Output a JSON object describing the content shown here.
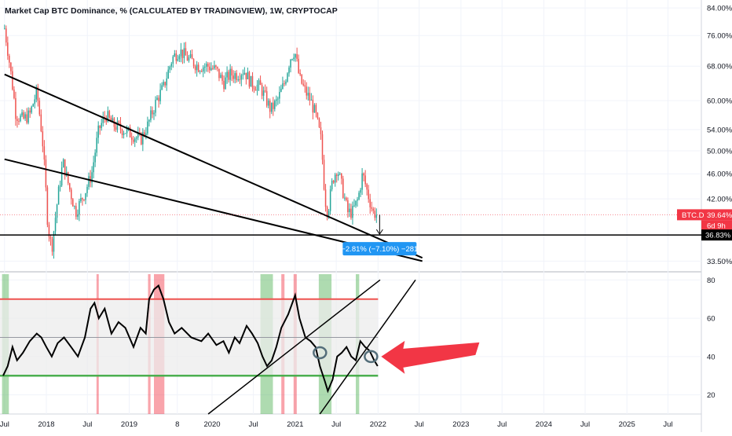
{
  "chart_data": [
    {
      "type": "candlestick",
      "title": "Market Cap BTC Dominance, % (CALCULATED BY TRADINGVIEW), 1W, CRYPTOCAP",
      "y_scale": "log",
      "ylim": [
        32.5,
        85
      ],
      "y_ticks": [
        {
          "value": 84,
          "label": "84.00%"
        },
        {
          "value": 76,
          "label": "76.00%"
        },
        {
          "value": 68,
          "label": "68.00%"
        },
        {
          "value": 60,
          "label": "60.00%"
        },
        {
          "value": 54,
          "label": "54.00%"
        },
        {
          "value": 50,
          "label": "50.00%"
        },
        {
          "value": 46,
          "label": "46.00%"
        },
        {
          "value": 42,
          "label": "42.00%"
        },
        {
          "value": 33.5,
          "label": "33.50%"
        }
      ],
      "series": [
        {
          "close_points": [
            [
              "2017-07-01",
              78
            ],
            [
              "2017-08-20",
              57
            ],
            [
              "2017-09-20",
              56
            ],
            [
              "2017-10-20",
              57
            ],
            [
              "2017-11-20",
              62
            ],
            [
              "2017-12-15",
              52
            ],
            [
              "2018-01-08",
              38
            ],
            [
              "2018-01-25",
              35
            ],
            [
              "2018-02-20",
              42
            ],
            [
              "2018-03-15",
              48
            ],
            [
              "2018-04-10",
              44
            ],
            [
              "2018-05-10",
              40
            ],
            [
              "2018-06-20",
              43
            ],
            [
              "2018-07-20",
              46
            ],
            [
              "2018-08-20",
              54
            ],
            [
              "2018-09-20",
              57
            ],
            [
              "2018-10-20",
              55
            ],
            [
              "2018-12-05",
              54
            ],
            [
              "2019-01-15",
              53
            ],
            [
              "2019-02-20",
              52
            ],
            [
              "2019-03-25",
              55
            ],
            [
              "2019-05-01",
              60
            ],
            [
              "2019-06-01",
              63
            ],
            [
              "2019-07-10",
              70
            ],
            [
              "2019-08-10",
              72
            ],
            [
              "2019-09-15",
              70
            ],
            [
              "2019-11-01",
              68
            ],
            [
              "2019-12-15",
              68
            ],
            [
              "2020-01-20",
              67
            ],
            [
              "2020-02-20",
              64
            ],
            [
              "2020-03-20",
              66
            ],
            [
              "2020-04-20",
              66
            ],
            [
              "2020-05-20",
              67
            ],
            [
              "2020-06-20",
              64
            ],
            [
              "2020-08-01",
              63
            ],
            [
              "2020-09-15",
              58
            ],
            [
              "2020-10-15",
              60
            ],
            [
              "2020-11-15",
              64
            ],
            [
              "2020-12-10",
              70
            ],
            [
              "2020-12-30",
              72
            ],
            [
              "2021-01-20",
              65
            ],
            [
              "2021-02-15",
              62
            ],
            [
              "2021-03-10",
              60
            ],
            [
              "2021-04-01",
              57
            ],
            [
              "2021-04-25",
              52
            ],
            [
              "2021-05-12",
              42
            ],
            [
              "2021-05-25",
              40
            ],
            [
              "2021-06-15",
              45
            ],
            [
              "2021-07-05",
              47
            ],
            [
              "2021-07-25",
              44
            ],
            [
              "2021-08-20",
              40
            ],
            [
              "2021-09-10",
              40
            ],
            [
              "2021-10-05",
              42
            ],
            [
              "2021-10-25",
              46
            ],
            [
              "2021-11-15",
              43
            ],
            [
              "2021-12-10",
              40
            ],
            [
              "2021-12-30",
              39.64
            ]
          ]
        }
      ],
      "price_badge": {
        "symbol": "BTC.D",
        "value": 39.64,
        "value_label": "39.64%",
        "countdown": "6d 9h"
      },
      "horizontal_level": {
        "value": 36.83,
        "label": "36.83%"
      },
      "measure_label": "−2.81% (−7.10%) −281",
      "trendlines": [
        {
          "points": [
            [
              "2017-07-01",
              66
            ],
            [
              "2022-07-15",
              33.9
            ]
          ]
        },
        {
          "points": [
            [
              "2017-07-01",
              48.5
            ],
            [
              "2022-07-15",
              33.5
            ]
          ]
        }
      ],
      "colors": {
        "up": "#26a69a",
        "down": "#ef5350",
        "badge": "#f23645",
        "measure": "#2196f3"
      }
    },
    {
      "type": "line",
      "ylim": [
        10,
        83
      ],
      "y_ticks": [
        80,
        60,
        40,
        20
      ],
      "bands": {
        "upper": 70,
        "middle": 50,
        "lower": 30
      },
      "series": [
        {
          "points": [
            [
              "2017-06-25",
              30
            ],
            [
              "2017-07-15",
              35
            ],
            [
              "2017-08-05",
              45
            ],
            [
              "2017-08-25",
              38
            ],
            [
              "2017-09-20",
              42
            ],
            [
              "2017-10-20",
              48
            ],
            [
              "2017-11-20",
              52
            ],
            [
              "2017-12-10",
              50
            ],
            [
              "2018-01-01",
              45
            ],
            [
              "2018-01-25",
              40
            ],
            [
              "2018-02-20",
              47
            ],
            [
              "2018-03-20",
              50
            ],
            [
              "2018-04-20",
              45
            ],
            [
              "2018-05-20",
              40
            ],
            [
              "2018-06-20",
              50
            ],
            [
              "2018-07-15",
              65
            ],
            [
              "2018-08-01",
              68
            ],
            [
              "2018-08-20",
              60
            ],
            [
              "2018-09-15",
              65
            ],
            [
              "2018-10-15",
              52
            ],
            [
              "2018-11-15",
              58
            ],
            [
              "2018-12-15",
              55
            ],
            [
              "2019-01-20",
              45
            ],
            [
              "2019-02-20",
              55
            ],
            [
              "2019-03-15",
              52
            ],
            [
              "2019-03-30",
              70
            ],
            [
              "2019-04-20",
              75
            ],
            [
              "2019-05-10",
              77
            ],
            [
              "2019-06-01",
              70
            ],
            [
              "2019-06-25",
              58
            ],
            [
              "2019-07-20",
              52
            ],
            [
              "2019-08-20",
              55
            ],
            [
              "2019-10-01",
              50
            ],
            [
              "2019-11-15",
              48
            ],
            [
              "2019-12-15",
              52
            ],
            [
              "2020-01-20",
              46
            ],
            [
              "2020-02-20",
              48
            ],
            [
              "2020-03-15",
              42
            ],
            [
              "2020-04-10",
              50
            ],
            [
              "2020-05-01",
              47
            ],
            [
              "2020-06-01",
              56
            ],
            [
              "2020-06-25",
              52
            ],
            [
              "2020-07-20",
              47
            ],
            [
              "2020-08-10",
              40
            ],
            [
              "2020-08-30",
              35
            ],
            [
              "2020-09-20",
              38
            ],
            [
              "2020-10-10",
              45
            ],
            [
              "2020-11-01",
              55
            ],
            [
              "2020-12-01",
              62
            ],
            [
              "2021-01-01",
              72
            ],
            [
              "2021-01-20",
              60
            ],
            [
              "2021-02-15",
              50
            ],
            [
              "2021-03-10",
              48
            ],
            [
              "2021-04-01",
              45
            ],
            [
              "2021-04-20",
              35
            ],
            [
              "2021-05-12",
              27
            ],
            [
              "2021-05-25",
              22
            ],
            [
              "2021-06-15",
              28
            ],
            [
              "2021-07-05",
              40
            ],
            [
              "2021-07-25",
              42
            ],
            [
              "2021-08-15",
              45
            ],
            [
              "2021-09-05",
              40
            ],
            [
              "2021-09-25",
              38
            ],
            [
              "2021-10-15",
              48
            ],
            [
              "2021-11-05",
              45
            ],
            [
              "2021-11-25",
              43
            ],
            [
              "2021-12-15",
              38
            ],
            [
              "2021-12-30",
              35
            ]
          ]
        }
      ],
      "trendlines": [
        {
          "points": [
            [
              "2019-12-15",
              10
            ],
            [
              "2022-01-10",
              80
            ]
          ]
        },
        {
          "points": [
            [
              "2021-04-20",
              10
            ],
            [
              "2022-06-15",
              80
            ]
          ]
        }
      ],
      "circled_points": [
        [
          "2021-04-20",
          42
        ],
        [
          "2021-12-01",
          40
        ]
      ],
      "shaded_zones": [
        {
          "from": "2017-06-20",
          "to": "2017-07-20",
          "color": "green"
        },
        {
          "from": "2018-08-10",
          "to": "2018-08-20",
          "color": "red"
        },
        {
          "from": "2019-03-25",
          "to": "2019-04-05",
          "color": "red"
        },
        {
          "from": "2019-04-20",
          "to": "2019-06-05",
          "color": "red"
        },
        {
          "from": "2020-08-01",
          "to": "2020-09-25",
          "color": "green"
        },
        {
          "from": "2020-11-01",
          "to": "2020-11-15",
          "color": "red"
        },
        {
          "from": "2020-12-25",
          "to": "2021-01-08",
          "color": "red"
        },
        {
          "from": "2021-04-15",
          "to": "2021-06-10",
          "color": "green"
        },
        {
          "from": "2021-09-25",
          "to": "2021-10-10",
          "color": "green"
        }
      ],
      "colors": {
        "line": "#000000",
        "upper": "#ef5350",
        "lower": "#4caf50",
        "band_fill": "#ececec",
        "arrow": "#f23645"
      }
    }
  ],
  "x_axis": {
    "ticks": [
      {
        "date": "2017-07-01",
        "label": "Jul"
      },
      {
        "date": "2018-01-01",
        "label": "2018"
      },
      {
        "date": "2018-07-01",
        "label": "Jul"
      },
      {
        "date": "2019-01-01",
        "label": "2019"
      },
      {
        "date": "2019-08-01",
        "label": "8"
      },
      {
        "date": "2020-01-01",
        "label": "2020"
      },
      {
        "date": "2020-07-01",
        "label": "Jul"
      },
      {
        "date": "2021-01-01",
        "label": "2021"
      },
      {
        "date": "2021-07-01",
        "label": "Jul"
      },
      {
        "date": "2022-01-01",
        "label": "2022"
      },
      {
        "date": "2022-07-01",
        "label": "Jul"
      },
      {
        "date": "2023-01-01",
        "label": "2023"
      },
      {
        "date": "2023-07-01",
        "label": "Jul"
      },
      {
        "date": "2024-01-01",
        "label": "2024"
      },
      {
        "date": "2024-07-01",
        "label": "Jul"
      },
      {
        "date": "2025-01-01",
        "label": "2025"
      },
      {
        "date": "2025-07-01",
        "label": "Jul"
      }
    ]
  }
}
